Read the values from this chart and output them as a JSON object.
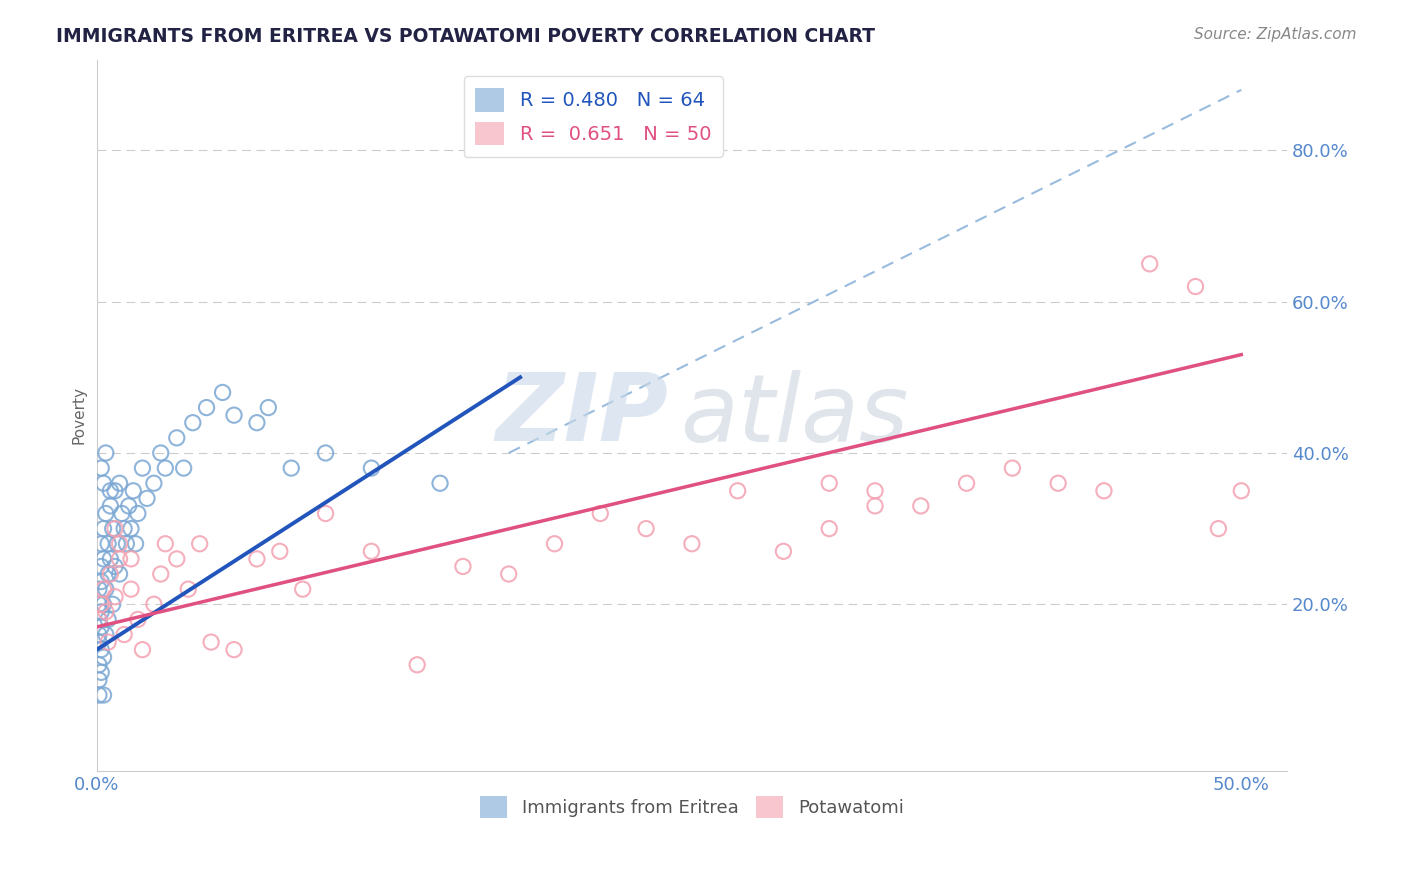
{
  "title": "IMMIGRANTS FROM ERITREA VS POTAWATOMI POVERTY CORRELATION CHART",
  "source_text": "Source: ZipAtlas.com",
  "ylabel": "Poverty",
  "xlim": [
    0.0,
    0.52
  ],
  "ylim": [
    -0.02,
    0.92
  ],
  "xticks": [
    0.0,
    0.05,
    0.1,
    0.15,
    0.2,
    0.25,
    0.3,
    0.35,
    0.4,
    0.45,
    0.5
  ],
  "xtick_labels": [
    "0.0%",
    "",
    "",
    "",
    "",
    "",
    "",
    "",
    "",
    "",
    "50.0%"
  ],
  "ytick_positions": [
    0.0,
    0.2,
    0.4,
    0.6,
    0.8
  ],
  "ytick_labels": [
    "",
    "20.0%",
    "40.0%",
    "60.0%",
    "80.0%"
  ],
  "legend_eritrea_R": 0.48,
  "legend_eritrea_N": 64,
  "legend_potawatomi_R": 0.651,
  "legend_potawatomi_N": 50,
  "blue_scatter_color": "#7BA7D4",
  "pink_scatter_color": "#F4A0B0",
  "blue_line_color": "#2255BB",
  "pink_line_color": "#E05080",
  "dash_line_color": "#99BBDD",
  "title_color": "#222244",
  "axis_tick_color": "#5588CC",
  "watermark_zip_color": "#C8D8E8",
  "watermark_atlas_color": "#C0CCD8",
  "grid_color": "#CCCCCC",
  "source_color": "#888888",
  "ylabel_color": "#666666",
  "scatter_size": 120,
  "scatter_lw": 1.5,
  "eritrea_x": [
    0.001,
    0.001,
    0.001,
    0.001,
    0.001,
    0.001,
    0.001,
    0.001,
    0.002,
    0.002,
    0.002,
    0.002,
    0.002,
    0.002,
    0.002,
    0.003,
    0.003,
    0.003,
    0.003,
    0.003,
    0.004,
    0.004,
    0.004,
    0.005,
    0.005,
    0.005,
    0.006,
    0.006,
    0.007,
    0.007,
    0.008,
    0.008,
    0.009,
    0.01,
    0.01,
    0.011,
    0.012,
    0.013,
    0.014,
    0.015,
    0.016,
    0.017,
    0.018,
    0.02,
    0.022,
    0.025,
    0.028,
    0.03,
    0.035,
    0.038,
    0.042,
    0.048,
    0.055,
    0.06,
    0.07,
    0.075,
    0.085,
    0.1,
    0.12,
    0.15,
    0.002,
    0.003,
    0.004,
    0.006
  ],
  "eritrea_y": [
    0.15,
    0.18,
    0.12,
    0.2,
    0.22,
    0.1,
    0.08,
    0.16,
    0.25,
    0.19,
    0.23,
    0.28,
    0.14,
    0.11,
    0.17,
    0.3,
    0.26,
    0.2,
    0.13,
    0.08,
    0.32,
    0.22,
    0.16,
    0.28,
    0.18,
    0.24,
    0.33,
    0.26,
    0.3,
    0.2,
    0.35,
    0.25,
    0.28,
    0.36,
    0.24,
    0.32,
    0.3,
    0.28,
    0.33,
    0.3,
    0.35,
    0.28,
    0.32,
    0.38,
    0.34,
    0.36,
    0.4,
    0.38,
    0.42,
    0.38,
    0.44,
    0.46,
    0.48,
    0.45,
    0.44,
    0.46,
    0.38,
    0.4,
    0.38,
    0.36,
    0.38,
    0.36,
    0.4,
    0.35
  ],
  "potawatomi_x": [
    0.001,
    0.002,
    0.003,
    0.004,
    0.005,
    0.006,
    0.008,
    0.01,
    0.012,
    0.015,
    0.018,
    0.02,
    0.025,
    0.028,
    0.03,
    0.035,
    0.04,
    0.045,
    0.05,
    0.06,
    0.07,
    0.08,
    0.09,
    0.1,
    0.12,
    0.14,
    0.16,
    0.18,
    0.2,
    0.22,
    0.24,
    0.26,
    0.28,
    0.3,
    0.32,
    0.34,
    0.36,
    0.38,
    0.4,
    0.42,
    0.44,
    0.46,
    0.48,
    0.49,
    0.5,
    0.32,
    0.34,
    0.008,
    0.01,
    0.015
  ],
  "potawatomi_y": [
    0.18,
    0.2,
    0.22,
    0.19,
    0.15,
    0.24,
    0.21,
    0.26,
    0.16,
    0.22,
    0.18,
    0.14,
    0.2,
    0.24,
    0.28,
    0.26,
    0.22,
    0.28,
    0.15,
    0.14,
    0.26,
    0.27,
    0.22,
    0.32,
    0.27,
    0.12,
    0.25,
    0.24,
    0.28,
    0.32,
    0.3,
    0.28,
    0.35,
    0.27,
    0.3,
    0.35,
    0.33,
    0.36,
    0.38,
    0.36,
    0.35,
    0.65,
    0.62,
    0.3,
    0.35,
    0.36,
    0.33,
    0.3,
    0.28,
    0.26
  ]
}
